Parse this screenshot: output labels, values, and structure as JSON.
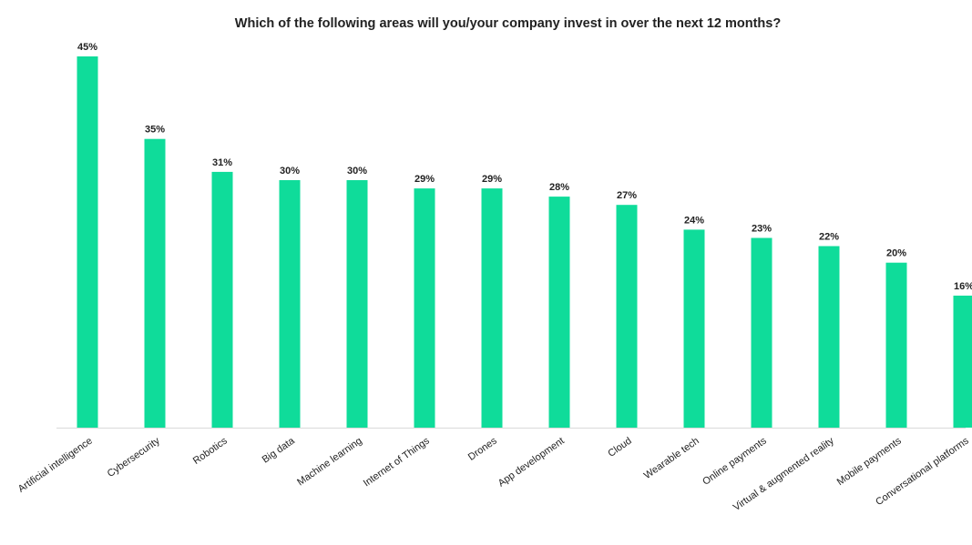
{
  "colors": {
    "bar": "#0fdc9a",
    "axis": "#d9d9d9",
    "text": "#222222"
  },
  "chart_data": {
    "type": "bar",
    "title": "Which of the following areas will you/your company invest in over the next 12 months?",
    "xlabel": "",
    "ylabel": "",
    "ylim": [
      0,
      45
    ],
    "grid": false,
    "legend": "none",
    "value_suffix": "%",
    "categories": [
      "Artificial intelligence",
      "Cybersecurity",
      "Robotics",
      "Big data",
      "Machine learning",
      "Internet of Things",
      "Drones",
      "App development",
      "Cloud",
      "Wearable tech",
      "Online payments",
      "Virtual & augmented reality",
      "Mobile payments",
      "Conversational platforms"
    ],
    "values": [
      45,
      35,
      31,
      30,
      30,
      29,
      29,
      28,
      27,
      24,
      23,
      22,
      20,
      16
    ],
    "data_labels": [
      "45%",
      "35%",
      "31%",
      "30%",
      "30%",
      "29%",
      "29%",
      "28%",
      "27%",
      "24%",
      "23%",
      "22%",
      "20%",
      "16%"
    ]
  }
}
